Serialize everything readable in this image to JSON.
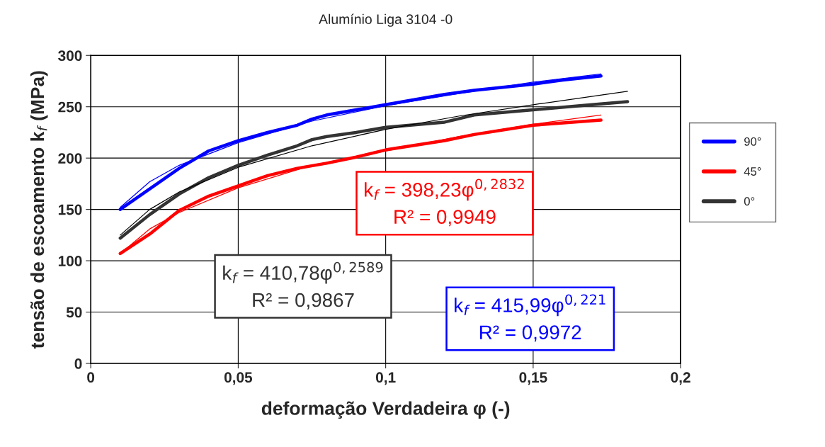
{
  "chart_data": {
    "type": "line",
    "title": "Alumínio Liga 3104 -0",
    "xlabel": "deformação Verdadeira φ (-)",
    "ylabel": "tensão de escoamento k$_{f}$ (MPa)",
    "series": [
      {
        "name": "90°",
        "color": "#0000ff",
        "x": [
          0.01,
          0.02,
          0.03,
          0.04,
          0.05,
          0.06,
          0.07,
          0.075,
          0.08,
          0.09,
          0.1,
          0.12,
          0.13,
          0.15,
          0.16,
          0.173
        ],
        "values": [
          150,
          170,
          190,
          207,
          217,
          225,
          232,
          238,
          242,
          247,
          252,
          262,
          266,
          272,
          276,
          280
        ]
      },
      {
        "name": "45°",
        "color": "#ff0000",
        "x": [
          0.01,
          0.02,
          0.03,
          0.04,
          0.05,
          0.06,
          0.07,
          0.08,
          0.09,
          0.1,
          0.12,
          0.13,
          0.15,
          0.173
        ],
        "values": [
          107,
          126,
          149,
          163,
          173,
          183,
          190,
          195,
          201,
          208,
          217,
          223,
          232,
          237
        ]
      },
      {
        "name": "0°",
        "color": "#333333",
        "x": [
          0.01,
          0.02,
          0.03,
          0.04,
          0.05,
          0.06,
          0.07,
          0.075,
          0.08,
          0.09,
          0.1,
          0.12,
          0.13,
          0.15,
          0.17,
          0.182
        ],
        "values": [
          122,
          145,
          165,
          181,
          193,
          203,
          212,
          218,
          221,
          225,
          230,
          235,
          242,
          247,
          252,
          255
        ]
      },
      {
        "type": "line",
        "color": "#0000ff",
        "x": [
          0.01,
          0.02,
          0.03,
          0.05,
          0.075,
          0.1,
          0.125,
          0.15,
          0.173
        ],
        "values": [
          152,
          177,
          193,
          215,
          236,
          251,
          263,
          274,
          282
        ]
      },
      {
        "type": "line",
        "color": "#ff0000",
        "x": [
          0.01,
          0.02,
          0.03,
          0.05,
          0.075,
          0.1,
          0.125,
          0.15,
          0.173
        ],
        "values": [
          107,
          131,
          147,
          171,
          193,
          207,
          221,
          233,
          242
        ]
      },
      {
        "type": "line",
        "color": "#000000",
        "x": [
          0.01,
          0.02,
          0.03,
          0.05,
          0.075,
          0.1,
          0.125,
          0.15,
          0.182
        ],
        "values": [
          125,
          150,
          167,
          191,
          212,
          228,
          241,
          252,
          265
        ]
      }
    ],
    "annotations": [
      "k$_{f}$ = 415,99φ$^{0,221}$\nR² = 0,9972",
      "k$_{f}$ = 398,23φ$^{0,2832}$\nR² = 0,9949",
      "k$_{f}$ = 410,78φ$^{0,2589}$\nR² = 0,9867"
    ],
    "xlim": [
      0,
      0.2
    ],
    "xticks": [
      0,
      {
        "value": 0.05,
        "label": "0,05"
      },
      {
        "value": 0.1,
        "label": "0,1"
      },
      {
        "value": 0.15,
        "label": "0,15"
      },
      {
        "value": 0.2,
        "label": "0,2"
      }
    ],
    "ylim": [
      0,
      300
    ],
    "yticks": [
      0,
      50,
      100,
      150,
      200,
      250,
      300
    ],
    "grid": true,
    "legend": "right"
  }
}
